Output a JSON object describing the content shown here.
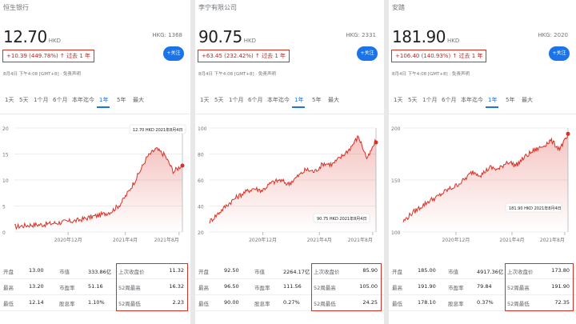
{
  "panels": [
    {
      "name": "恒生银行",
      "price": "12.70",
      "currency": "HKD",
      "code": "HKG: 1368",
      "follow_label": "关注",
      "change": "+10.39 (449.78%)",
      "period": "过去 1 年",
      "meta": "8月4日 下午4:08 [GMT+8] · 免责声明",
      "tabs": [
        "1天",
        "5天",
        "1个月",
        "6个月",
        "本年迄今",
        "1年",
        "5年",
        "最大"
      ],
      "active_tab": 5,
      "tooltip": "12.70 HKD  2021年8月4日",
      "y_ticks": [
        "20",
        "15",
        "10",
        "5",
        "0"
      ],
      "x_ticks": [
        "2020年12月",
        "2021年4月",
        "2021年8月"
      ],
      "stats": [
        [
          "开盘",
          "13.00",
          "市值",
          "333.86亿",
          "上次收盘价",
          "11.32"
        ],
        [
          "最高",
          "13.20",
          "市盈率",
          "51.16",
          "52周最高",
          "16.32"
        ],
        [
          "最低",
          "12.14",
          "股息率",
          "1.10%",
          "52周最低",
          "2.23"
        ]
      ]
    },
    {
      "name": "李宁有限公司",
      "price": "90.75",
      "currency": "HKD",
      "code": "HKG: 2331",
      "follow_label": "关注",
      "change": "+63.45 (232.42%)",
      "period": "过去 1 年",
      "meta": "8月4日 下午4:08 [GMT+8] · 免责声明",
      "tabs": [
        "1天",
        "5天",
        "1个月",
        "6个月",
        "本年迄今",
        "1年",
        "5年",
        "最大"
      ],
      "active_tab": 5,
      "tooltip": "90.75 HKD  2021年8月4日",
      "y_ticks": [
        "100",
        "80",
        "60",
        "40",
        "20"
      ],
      "x_ticks": [
        "2020年12月",
        "2021年4月",
        "2021年8月"
      ],
      "stats": [
        [
          "开盘",
          "92.50",
          "市值",
          "2264.17亿",
          "上次收盘价",
          "85.90"
        ],
        [
          "最高",
          "96.50",
          "市盈率",
          "111.56",
          "52周最高",
          "105.00"
        ],
        [
          "最低",
          "90.00",
          "股息率",
          "0.27%",
          "52周最低",
          "24.25"
        ]
      ]
    },
    {
      "name": "安踏",
      "price": "181.90",
      "currency": "HKD",
      "code": "HKG: 2020",
      "follow_label": "关注",
      "change": "+106.40 (140.93%)",
      "period": "过去 1 年",
      "meta": "8月4日 下午4:08 [GMT+8] · 免责声明",
      "tabs": [
        "1天",
        "5天",
        "1个月",
        "6个月",
        "本年迄今",
        "1年",
        "5年",
        "最大"
      ],
      "active_tab": 5,
      "tooltip": "181.90 HKD  2021年8月4日",
      "y_ticks": [
        "200",
        "150",
        "100"
      ],
      "x_ticks": [
        "2020年12月",
        "2021年4月",
        "2021年8月"
      ],
      "stats": [
        [
          "开盘",
          "185.00",
          "市值",
          "4917.36亿",
          "上次收盘价",
          "173.80"
        ],
        [
          "最高",
          "191.90",
          "市盈率",
          "79.84",
          "52周最高",
          "191.90"
        ],
        [
          "最低",
          "178.10",
          "股息率",
          "0.37%",
          "52周最低",
          "72.35"
        ]
      ]
    }
  ],
  "colors": {
    "line": "#d93025",
    "accent": "#1a73e8",
    "highlight": "#d93025"
  }
}
